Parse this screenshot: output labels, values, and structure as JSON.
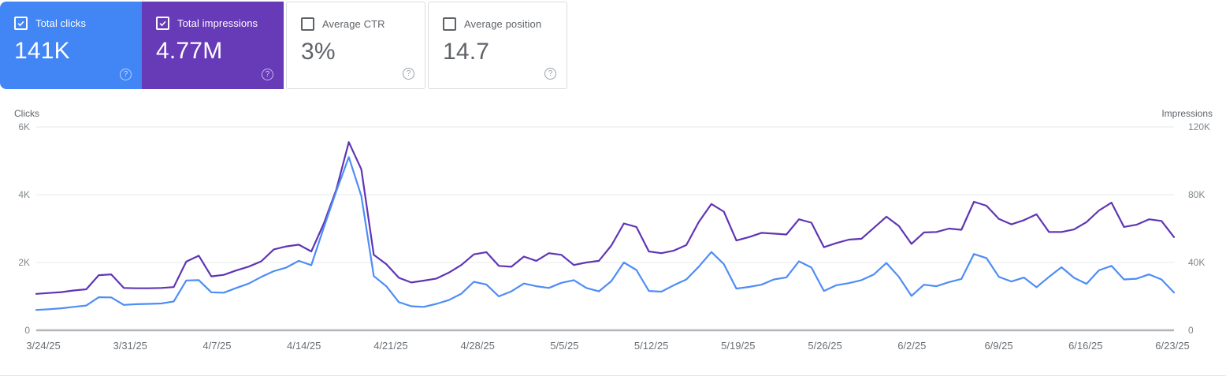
{
  "cards": [
    {
      "label": "Total clicks",
      "value": "141K",
      "checked": true,
      "bg": "#4285f4",
      "style": "colored"
    },
    {
      "label": "Total impressions",
      "value": "4.77M",
      "checked": true,
      "bg": "#673ab7",
      "style": "colored"
    },
    {
      "label": "Average CTR",
      "value": "3%",
      "checked": false,
      "bg": "#ffffff",
      "style": "white"
    },
    {
      "label": "Average position",
      "value": "14.7",
      "checked": false,
      "bg": "#ffffff",
      "style": "white"
    }
  ],
  "icons": {
    "help": "?"
  },
  "colors": {
    "card_clicks": "#4285f4",
    "card_impressions": "#673ab7",
    "line_clicks": "#4e8df5",
    "line_impressions": "#5f35b5",
    "gridline": "#ebedef",
    "zero_axis": "#b2b6ba"
  },
  "chart_data": {
    "type": "line",
    "left_axis": {
      "title": "Clicks",
      "max": 6000,
      "ticks": [
        "0",
        "2K",
        "4K",
        "6K"
      ]
    },
    "right_axis": {
      "title": "Impressions",
      "max": 120000,
      "ticks": [
        "0",
        "40K",
        "80K",
        "120K"
      ]
    },
    "grid": "horizontal-only",
    "legend_position": "none",
    "x_tick_labels": [
      "3/24/25",
      "3/31/25",
      "4/7/25",
      "4/14/25",
      "4/21/25",
      "4/28/25",
      "5/5/25",
      "5/12/25",
      "5/19/25",
      "5/26/25",
      "6/2/25",
      "6/9/25",
      "6/16/25",
      "6/23/25"
    ],
    "x_start_date": "3/24/25",
    "x_end_date": "6/23/25",
    "series": [
      {
        "name": "Impressions",
        "axis": "right",
        "color": "#5f35b5",
        "values": [
          21500,
          22000,
          22500,
          23500,
          24200,
          32500,
          33000,
          25000,
          24800,
          24800,
          25000,
          25500,
          40500,
          44000,
          31800,
          32700,
          35300,
          37600,
          40700,
          47700,
          49500,
          50500,
          46500,
          63000,
          83000,
          111000,
          95000,
          44500,
          39000,
          31000,
          28200,
          29300,
          30500,
          34000,
          38500,
          44800,
          46100,
          38000,
          37500,
          43500,
          41000,
          45500,
          44500,
          38500,
          40000,
          41000,
          50000,
          63000,
          61000,
          46500,
          45500,
          47000,
          50300,
          64000,
          74500,
          70000,
          53000,
          55000,
          57500,
          57000,
          56500,
          65500,
          63500,
          49000,
          51500,
          53500,
          54000,
          60500,
          67000,
          61500,
          51000,
          57700,
          58000,
          60000,
          59300,
          75800,
          73500,
          65700,
          62500,
          65000,
          68400,
          58000,
          58000,
          59500,
          63800,
          70700,
          75300,
          61000,
          62300,
          65500,
          64500,
          55000
        ]
      },
      {
        "name": "Clicks",
        "axis": "left",
        "color": "#4e8df5",
        "values": [
          600,
          620,
          650,
          690,
          730,
          975,
          970,
          750,
          770,
          780,
          790,
          850,
          1470,
          1480,
          1120,
          1110,
          1250,
          1380,
          1575,
          1745,
          1850,
          2050,
          1920,
          3035,
          4100,
          5110,
          3960,
          1600,
          1300,
          830,
          710,
          690,
          780,
          890,
          1080,
          1430,
          1350,
          1000,
          1150,
          1380,
          1300,
          1250,
          1400,
          1480,
          1250,
          1150,
          1450,
          2000,
          1780,
          1160,
          1140,
          1330,
          1500,
          1880,
          2310,
          1950,
          1230,
          1280,
          1345,
          1500,
          1560,
          2035,
          1850,
          1160,
          1330,
          1390,
          1480,
          1650,
          1985,
          1575,
          1015,
          1345,
          1300,
          1420,
          1515,
          2250,
          2130,
          1575,
          1440,
          1555,
          1270,
          1575,
          1860,
          1550,
          1370,
          1770,
          1900,
          1500,
          1520,
          1650,
          1500,
          1115
        ]
      }
    ]
  }
}
